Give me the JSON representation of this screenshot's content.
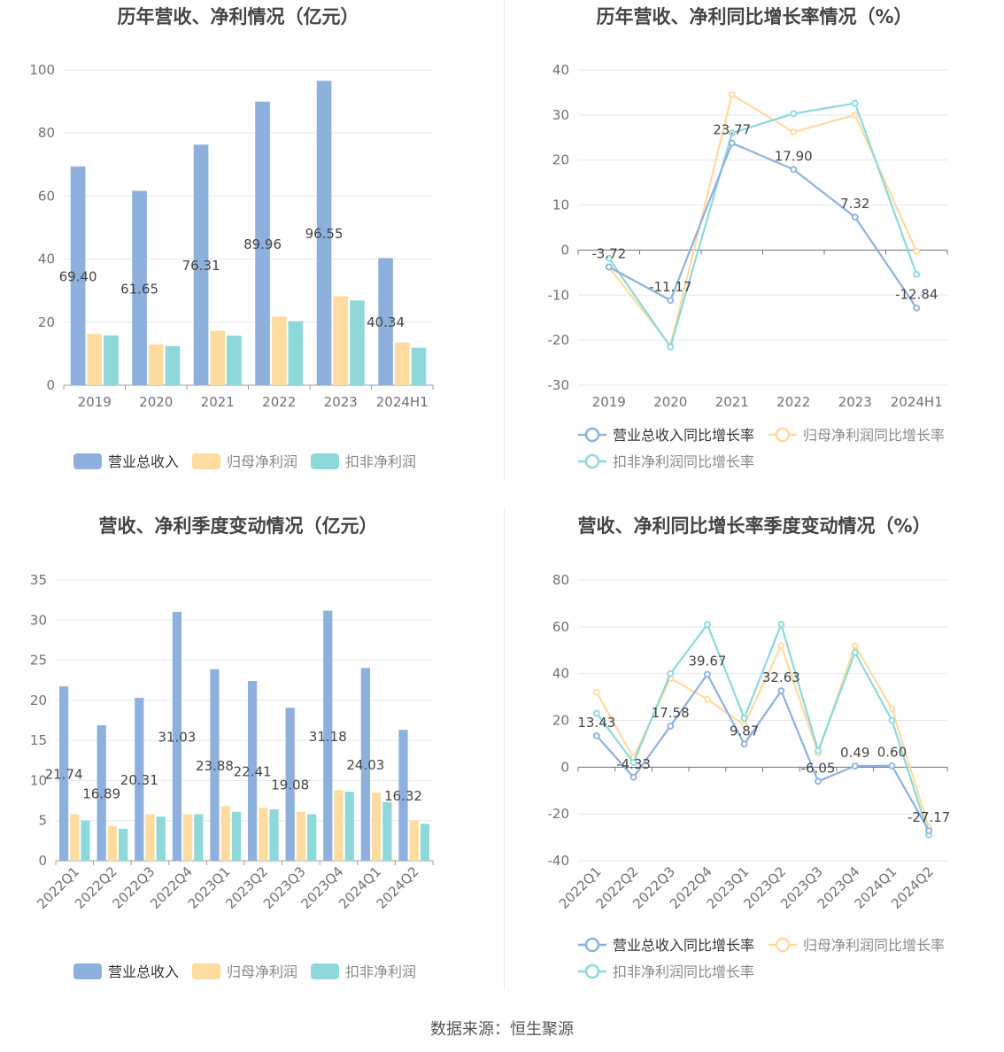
{
  "source_text": "数据来源：恒生聚源",
  "colors": {
    "revenue": "#8eb0dc",
    "net_profit": "#fedb9e",
    "deducted_profit": "#8ed8da",
    "grid": "#e4e6f0",
    "axis_text": "#6e7079",
    "title": "#444444",
    "label": "#444444"
  },
  "chart_data": [
    {
      "type": "bar",
      "title": "历年营收、净利情况（亿元）",
      "categories": [
        "2019",
        "2020",
        "2021",
        "2022",
        "2023",
        "2024H1"
      ],
      "ylim": [
        0,
        100
      ],
      "yticks": [
        0,
        20,
        40,
        60,
        80,
        100
      ],
      "series": [
        {
          "name": "营业总收入",
          "values": [
            69.4,
            61.65,
            76.31,
            89.96,
            96.55,
            40.34
          ],
          "labels": [
            "69.40",
            "61.65",
            "76.31",
            "89.96",
            "96.55",
            "40.34"
          ]
        },
        {
          "name": "归母净利润",
          "values": [
            16.3,
            12.9,
            17.3,
            21.8,
            28.2,
            13.5
          ]
        },
        {
          "name": "扣非净利润",
          "values": [
            15.8,
            12.4,
            15.7,
            20.3,
            26.9,
            11.9
          ]
        }
      ],
      "legend": "bottom",
      "grid": true
    },
    {
      "type": "line",
      "title": "历年营收、净利同比增长率情况（%）",
      "categories": [
        "2019",
        "2020",
        "2021",
        "2022",
        "2023",
        "2024H1"
      ],
      "ylim": [
        -30,
        40
      ],
      "yticks": [
        -30,
        -20,
        -10,
        0,
        10,
        20,
        30,
        40
      ],
      "series": [
        {
          "name": "营业总收入同比增长率",
          "values": [
            -3.72,
            -11.17,
            23.77,
            17.9,
            7.32,
            -12.84
          ],
          "labels": [
            "-3.72",
            "-11.17",
            "23.77",
            "17.90",
            "7.32",
            "-12.84"
          ]
        },
        {
          "name": "归母净利润同比增长率",
          "values": [
            -3.8,
            -21.2,
            34.5,
            26.2,
            30.0,
            -0.3
          ]
        },
        {
          "name": "扣非净利润同比增长率",
          "values": [
            -1.8,
            -21.5,
            26.0,
            30.3,
            32.6,
            -5.4
          ]
        }
      ],
      "legend": "bottom",
      "grid": true
    },
    {
      "type": "bar",
      "title": "营收、净利季度变动情况（亿元）",
      "categories": [
        "2022Q1",
        "2022Q2",
        "2022Q3",
        "2022Q4",
        "2023Q1",
        "2023Q2",
        "2023Q3",
        "2023Q4",
        "2024Q1",
        "2024Q2"
      ],
      "ylim": [
        0,
        35
      ],
      "yticks": [
        0,
        5,
        10,
        15,
        20,
        25,
        30,
        35
      ],
      "series": [
        {
          "name": "营业总收入",
          "values": [
            21.74,
            16.89,
            20.31,
            31.03,
            23.88,
            22.41,
            19.08,
            31.18,
            24.03,
            16.32
          ],
          "labels": [
            "21.74",
            "16.89",
            "20.31",
            "31.03",
            "23.88",
            "22.41",
            "19.08",
            "31.18",
            "24.03",
            "16.32"
          ]
        },
        {
          "name": "归母净利润",
          "values": [
            5.8,
            4.3,
            5.8,
            5.8,
            6.8,
            6.6,
            6.1,
            8.8,
            8.5,
            5.0
          ]
        },
        {
          "name": "扣非净利润",
          "values": [
            5.0,
            4.0,
            5.5,
            5.8,
            6.1,
            6.4,
            5.8,
            8.6,
            7.3,
            4.6
          ]
        }
      ],
      "legend": "bottom",
      "grid": true
    },
    {
      "type": "line",
      "title": "营收、净利同比增长率季度变动情况（%）",
      "categories": [
        "2022Q1",
        "2022Q2",
        "2022Q3",
        "2022Q4",
        "2023Q1",
        "2023Q2",
        "2023Q3",
        "2023Q4",
        "2024Q1",
        "2024Q2"
      ],
      "ylim": [
        -40,
        80
      ],
      "yticks": [
        -40,
        -20,
        0,
        20,
        40,
        60,
        80
      ],
      "series": [
        {
          "name": "营业总收入同比增长率",
          "values": [
            13.43,
            -4.33,
            17.58,
            39.67,
            9.87,
            32.63,
            -6.05,
            0.49,
            0.6,
            -27.17
          ],
          "labels": [
            "13.43",
            "-4.33",
            "17.58",
            "39.67",
            "9.87",
            "32.63",
            "-6.05",
            "0.49",
            "0.60",
            "-27.17"
          ]
        },
        {
          "name": "归母净利润同比增长率",
          "values": [
            32.0,
            4.0,
            38.0,
            29.0,
            18.0,
            52.0,
            6.0,
            52.0,
            25.0,
            -26.0
          ]
        },
        {
          "name": "扣非净利润同比增长率",
          "values": [
            23.0,
            2.0,
            40.0,
            61.0,
            21.0,
            61.0,
            7.0,
            49.0,
            20.0,
            -29.0
          ]
        }
      ],
      "legend": "bottom",
      "grid": true
    }
  ]
}
